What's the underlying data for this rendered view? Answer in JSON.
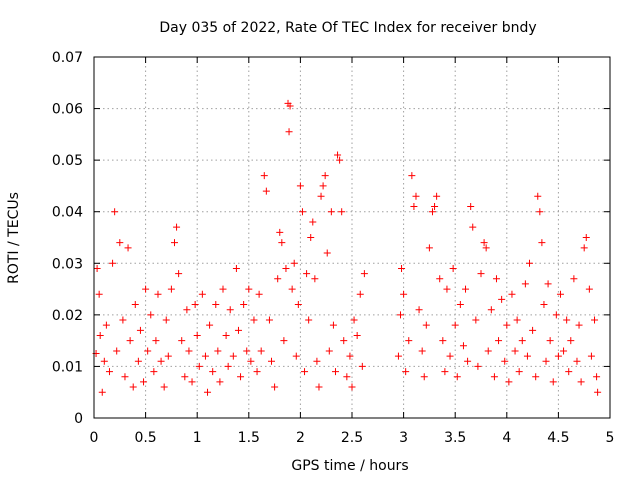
{
  "chart_data": {
    "type": "scatter",
    "title": "Day 035 of 2022, Rate Of TEC Index for receiver bndy",
    "xlabel": "GPS time / hours",
    "ylabel": "ROTI / TECUs",
    "xlim": [
      0,
      5
    ],
    "ylim": [
      0,
      0.07
    ],
    "grid": true,
    "marker": "+",
    "color": "#ff0000",
    "xticks": [
      {
        "value": 0,
        "label": "0"
      },
      {
        "value": 0.5,
        "label": "0.5"
      },
      {
        "value": 1,
        "label": "1"
      },
      {
        "value": 1.5,
        "label": "1.5"
      },
      {
        "value": 2,
        "label": "2"
      },
      {
        "value": 2.5,
        "label": "2.5"
      },
      {
        "value": 3,
        "label": "3"
      },
      {
        "value": 3.5,
        "label": "3.5"
      },
      {
        "value": 4,
        "label": "4"
      },
      {
        "value": 4.5,
        "label": "4.5"
      },
      {
        "value": 5,
        "label": "5"
      }
    ],
    "yticks": [
      {
        "value": 0,
        "label": "0"
      },
      {
        "value": 0.01,
        "label": "0.01"
      },
      {
        "value": 0.02,
        "label": "0.02"
      },
      {
        "value": 0.03,
        "label": "0.03"
      },
      {
        "value": 0.04,
        "label": "0.04"
      },
      {
        "value": 0.05,
        "label": "0.05"
      },
      {
        "value": 0.06,
        "label": "0.06"
      },
      {
        "value": 0.07,
        "label": "0.07"
      }
    ],
    "series": [
      {
        "name": "ROTI",
        "points": [
          [
            0.02,
            0.0125
          ],
          [
            0.03,
            0.029
          ],
          [
            0.05,
            0.024
          ],
          [
            0.06,
            0.016
          ],
          [
            0.08,
            0.005
          ],
          [
            0.1,
            0.011
          ],
          [
            0.12,
            0.018
          ],
          [
            0.15,
            0.009
          ],
          [
            0.18,
            0.03
          ],
          [
            0.2,
            0.04
          ],
          [
            0.22,
            0.013
          ],
          [
            0.25,
            0.034
          ],
          [
            0.28,
            0.019
          ],
          [
            0.3,
            0.008
          ],
          [
            0.33,
            0.033
          ],
          [
            0.35,
            0.015
          ],
          [
            0.38,
            0.006
          ],
          [
            0.4,
            0.022
          ],
          [
            0.43,
            0.011
          ],
          [
            0.45,
            0.017
          ],
          [
            0.48,
            0.007
          ],
          [
            0.5,
            0.025
          ],
          [
            0.52,
            0.013
          ],
          [
            0.55,
            0.02
          ],
          [
            0.58,
            0.009
          ],
          [
            0.6,
            0.015
          ],
          [
            0.62,
            0.024
          ],
          [
            0.65,
            0.011
          ],
          [
            0.68,
            0.006
          ],
          [
            0.7,
            0.019
          ],
          [
            0.72,
            0.012
          ],
          [
            0.75,
            0.025
          ],
          [
            0.78,
            0.034
          ],
          [
            0.8,
            0.037
          ],
          [
            0.82,
            0.028
          ],
          [
            0.85,
            0.015
          ],
          [
            0.88,
            0.008
          ],
          [
            0.9,
            0.021
          ],
          [
            0.92,
            0.013
          ],
          [
            0.95,
            0.007
          ],
          [
            0.98,
            0.022
          ],
          [
            1.0,
            0.016
          ],
          [
            1.02,
            0.01
          ],
          [
            1.05,
            0.024
          ],
          [
            1.08,
            0.012
          ],
          [
            1.1,
            0.005
          ],
          [
            1.12,
            0.018
          ],
          [
            1.15,
            0.009
          ],
          [
            1.18,
            0.022
          ],
          [
            1.2,
            0.013
          ],
          [
            1.22,
            0.007
          ],
          [
            1.25,
            0.025
          ],
          [
            1.28,
            0.016
          ],
          [
            1.3,
            0.01
          ],
          [
            1.32,
            0.021
          ],
          [
            1.35,
            0.012
          ],
          [
            1.38,
            0.029
          ],
          [
            1.4,
            0.017
          ],
          [
            1.42,
            0.008
          ],
          [
            1.45,
            0.022
          ],
          [
            1.48,
            0.013
          ],
          [
            1.5,
            0.025
          ],
          [
            1.52,
            0.011
          ],
          [
            1.55,
            0.019
          ],
          [
            1.58,
            0.009
          ],
          [
            1.6,
            0.024
          ],
          [
            1.62,
            0.013
          ],
          [
            1.65,
            0.047
          ],
          [
            1.67,
            0.044
          ],
          [
            1.7,
            0.019
          ],
          [
            1.72,
            0.011
          ],
          [
            1.75,
            0.006
          ],
          [
            1.78,
            0.027
          ],
          [
            1.8,
            0.036
          ],
          [
            1.82,
            0.034
          ],
          [
            1.84,
            0.015
          ],
          [
            1.86,
            0.029
          ],
          [
            1.88,
            0.061
          ],
          [
            1.89,
            0.0555
          ],
          [
            1.9,
            0.0605
          ],
          [
            1.92,
            0.025
          ],
          [
            1.94,
            0.03
          ],
          [
            1.96,
            0.012
          ],
          [
            1.98,
            0.022
          ],
          [
            2.0,
            0.045
          ],
          [
            2.02,
            0.04
          ],
          [
            2.04,
            0.009
          ],
          [
            2.06,
            0.028
          ],
          [
            2.08,
            0.019
          ],
          [
            2.1,
            0.035
          ],
          [
            2.12,
            0.038
          ],
          [
            2.14,
            0.027
          ],
          [
            2.16,
            0.011
          ],
          [
            2.18,
            0.006
          ],
          [
            2.2,
            0.043
          ],
          [
            2.22,
            0.045
          ],
          [
            2.24,
            0.047
          ],
          [
            2.26,
            0.032
          ],
          [
            2.28,
            0.013
          ],
          [
            2.3,
            0.04
          ],
          [
            2.32,
            0.018
          ],
          [
            2.34,
            0.009
          ],
          [
            2.36,
            0.051
          ],
          [
            2.38,
            0.05
          ],
          [
            2.4,
            0.04
          ],
          [
            2.42,
            0.015
          ],
          [
            2.45,
            0.008
          ],
          [
            2.48,
            0.012
          ],
          [
            2.5,
            0.006
          ],
          [
            2.52,
            0.019
          ],
          [
            2.55,
            0.016
          ],
          [
            2.58,
            0.024
          ],
          [
            2.6,
            0.01
          ],
          [
            2.62,
            0.028
          ],
          [
            2.95,
            0.012
          ],
          [
            2.97,
            0.02
          ],
          [
            2.98,
            0.029
          ],
          [
            3.0,
            0.024
          ],
          [
            3.02,
            0.009
          ],
          [
            3.05,
            0.015
          ],
          [
            3.08,
            0.047
          ],
          [
            3.1,
            0.041
          ],
          [
            3.12,
            0.043
          ],
          [
            3.15,
            0.021
          ],
          [
            3.18,
            0.013
          ],
          [
            3.2,
            0.008
          ],
          [
            3.22,
            0.018
          ],
          [
            3.25,
            0.033
          ],
          [
            3.28,
            0.04
          ],
          [
            3.3,
            0.041
          ],
          [
            3.32,
            0.043
          ],
          [
            3.35,
            0.027
          ],
          [
            3.38,
            0.015
          ],
          [
            3.4,
            0.009
          ],
          [
            3.42,
            0.025
          ],
          [
            3.45,
            0.012
          ],
          [
            3.48,
            0.029
          ],
          [
            3.5,
            0.018
          ],
          [
            3.52,
            0.008
          ],
          [
            3.55,
            0.022
          ],
          [
            3.58,
            0.014
          ],
          [
            3.6,
            0.025
          ],
          [
            3.62,
            0.011
          ],
          [
            3.65,
            0.041
          ],
          [
            3.67,
            0.037
          ],
          [
            3.7,
            0.019
          ],
          [
            3.72,
            0.01
          ],
          [
            3.75,
            0.028
          ],
          [
            3.78,
            0.034
          ],
          [
            3.8,
            0.033
          ],
          [
            3.82,
            0.013
          ],
          [
            3.85,
            0.021
          ],
          [
            3.88,
            0.008
          ],
          [
            3.9,
            0.027
          ],
          [
            3.92,
            0.015
          ],
          [
            3.95,
            0.023
          ],
          [
            3.98,
            0.011
          ],
          [
            4.0,
            0.018
          ],
          [
            4.02,
            0.007
          ],
          [
            4.05,
            0.024
          ],
          [
            4.08,
            0.013
          ],
          [
            4.1,
            0.019
          ],
          [
            4.12,
            0.009
          ],
          [
            4.15,
            0.015
          ],
          [
            4.18,
            0.026
          ],
          [
            4.2,
            0.012
          ],
          [
            4.22,
            0.03
          ],
          [
            4.25,
            0.017
          ],
          [
            4.28,
            0.008
          ],
          [
            4.3,
            0.043
          ],
          [
            4.32,
            0.04
          ],
          [
            4.34,
            0.034
          ],
          [
            4.36,
            0.022
          ],
          [
            4.38,
            0.011
          ],
          [
            4.4,
            0.026
          ],
          [
            4.42,
            0.015
          ],
          [
            4.45,
            0.007
          ],
          [
            4.48,
            0.02
          ],
          [
            4.5,
            0.012
          ],
          [
            4.52,
            0.024
          ],
          [
            4.55,
            0.013
          ],
          [
            4.58,
            0.019
          ],
          [
            4.6,
            0.009
          ],
          [
            4.62,
            0.015
          ],
          [
            4.65,
            0.027
          ],
          [
            4.68,
            0.011
          ],
          [
            4.7,
            0.018
          ],
          [
            4.72,
            0.007
          ],
          [
            4.75,
            0.033
          ],
          [
            4.77,
            0.035
          ],
          [
            4.8,
            0.025
          ],
          [
            4.82,
            0.012
          ],
          [
            4.85,
            0.019
          ],
          [
            4.87,
            0.008
          ],
          [
            4.88,
            0.005
          ]
        ]
      }
    ]
  }
}
